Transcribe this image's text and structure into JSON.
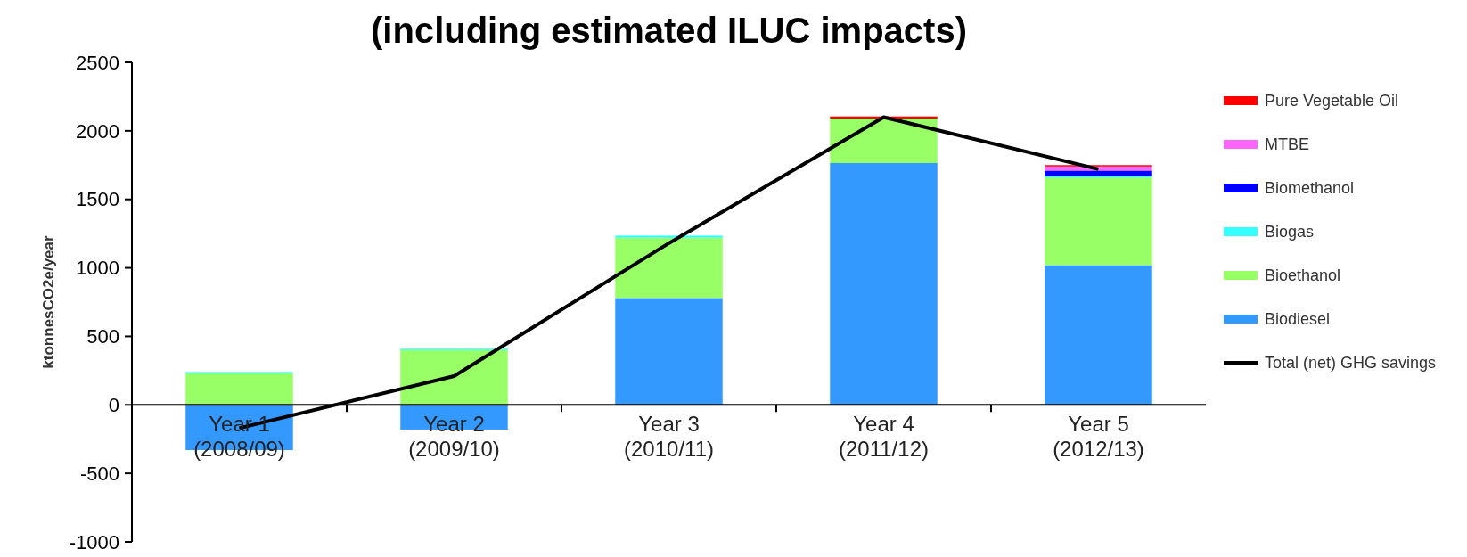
{
  "chart_data": {
    "type": "bar",
    "title": "(including estimated ILUC impacts)",
    "ylabel": "ktonnesCO2e/year",
    "categories": [
      "Year 1\n(2008/09)",
      "Year 2\n(2009/10)",
      "Year 3\n(2010/11)",
      "Year 4\n(2011/12)",
      "Year 5\n(2012/13)"
    ],
    "stacked": true,
    "series": [
      {
        "name": "Biodiesel",
        "color": "#3399ff",
        "values": [
          -330,
          -180,
          780,
          1765,
          1020
        ]
      },
      {
        "name": "Bioethanol",
        "color": "#99ff66",
        "values": [
          230,
          400,
          440,
          325,
          640
        ]
      },
      {
        "name": "Biogas",
        "color": "#33ffff",
        "values": [
          10,
          10,
          15,
          null,
          10
        ]
      },
      {
        "name": "Biomethanol",
        "color": "#0000ff",
        "values": [
          0,
          0,
          0,
          0,
          40
        ]
      },
      {
        "name": "MTBE",
        "color": "#ff66ff",
        "values": [
          0,
          0,
          0,
          0,
          30
        ]
      },
      {
        "name": "Pure Vegetable Oil",
        "color": "#ff0000",
        "values": [
          0,
          0,
          0,
          15,
          10
        ]
      },
      {
        "name": "Total (net) GHG savings",
        "type": "line",
        "color": "#000000",
        "values": [
          -170,
          210,
          1180,
          2100,
          1720
        ]
      }
    ],
    "ylim": [
      -1000,
      2500
    ],
    "yticks": [
      -1000,
      -500,
      0,
      500,
      1000,
      1500,
      2000,
      2500
    ],
    "legend": "right"
  }
}
